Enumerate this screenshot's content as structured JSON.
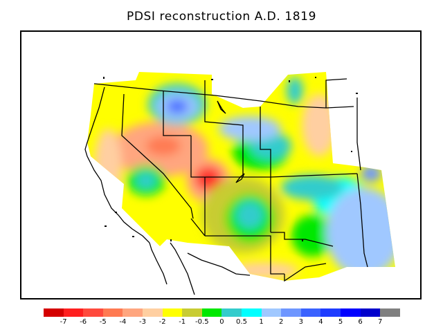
{
  "title": "PDSI reconstruction A.D. 1819",
  "colors": {
    "background": "#ffffff",
    "boundary": "#000000"
  },
  "legend": {
    "bins": [
      {
        "color": "#d40000"
      },
      {
        "color": "#ff1f1f"
      },
      {
        "color": "#ff4a3d"
      },
      {
        "color": "#ff7a52"
      },
      {
        "color": "#ffa67f"
      },
      {
        "color": "#ffcfa1"
      },
      {
        "color": "#ffff00"
      },
      {
        "color": "#c8cc33"
      },
      {
        "color": "#00e800"
      },
      {
        "color": "#33cccc"
      },
      {
        "color": "#00ffff"
      },
      {
        "color": "#a0c8ff"
      },
      {
        "color": "#6e96ff"
      },
      {
        "color": "#3a62ff"
      },
      {
        "color": "#1e3cff"
      },
      {
        "color": "#0000ff"
      },
      {
        "color": "#0000cc"
      },
      {
        "color": "#808080"
      }
    ],
    "labels": [
      "-7",
      "-6",
      "-5",
      "-4",
      "-3",
      "-2",
      "-1",
      "-0.5",
      "0",
      "0.5",
      "1",
      "2",
      "3",
      "4",
      "5",
      "6",
      "7"
    ]
  }
}
